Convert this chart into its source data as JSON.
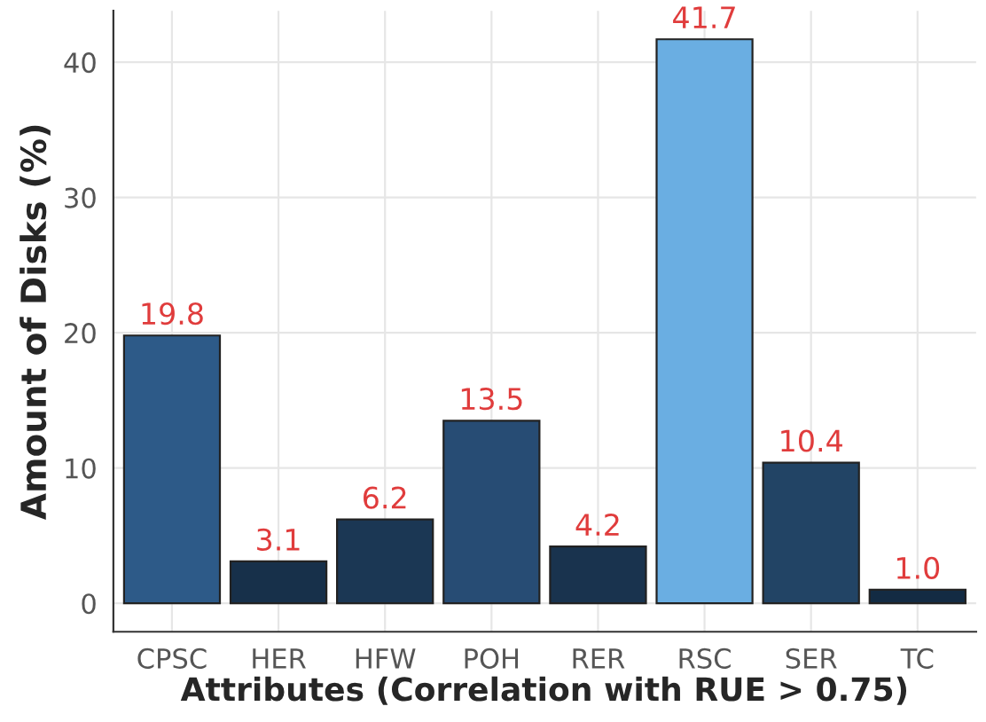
{
  "chart_data": {
    "type": "bar",
    "xlabel": "Attributes (Correlation with RUE > 0.75)",
    "ylabel": "Amount of Disks (%)",
    "categories": [
      "CPSC",
      "HER",
      "HFW",
      "POH",
      "RER",
      "RSC",
      "SER",
      "TC"
    ],
    "values": [
      19.8,
      3.1,
      6.2,
      13.5,
      4.2,
      41.7,
      10.4,
      1.0
    ],
    "colors": [
      "#2d5a88",
      "#17304a",
      "#1b3754",
      "#274c74",
      "#19334e",
      "#6aaee2",
      "#224465",
      "#132b43"
    ],
    "ylim": [
      -2.1,
      43.8
    ],
    "yticks": [
      0,
      10,
      20,
      30,
      40
    ],
    "grid": true,
    "value_labels": [
      "19.8",
      "3.1",
      "6.2",
      "13.5",
      "4.2",
      "41.7",
      "10.4",
      "1.0"
    ]
  }
}
